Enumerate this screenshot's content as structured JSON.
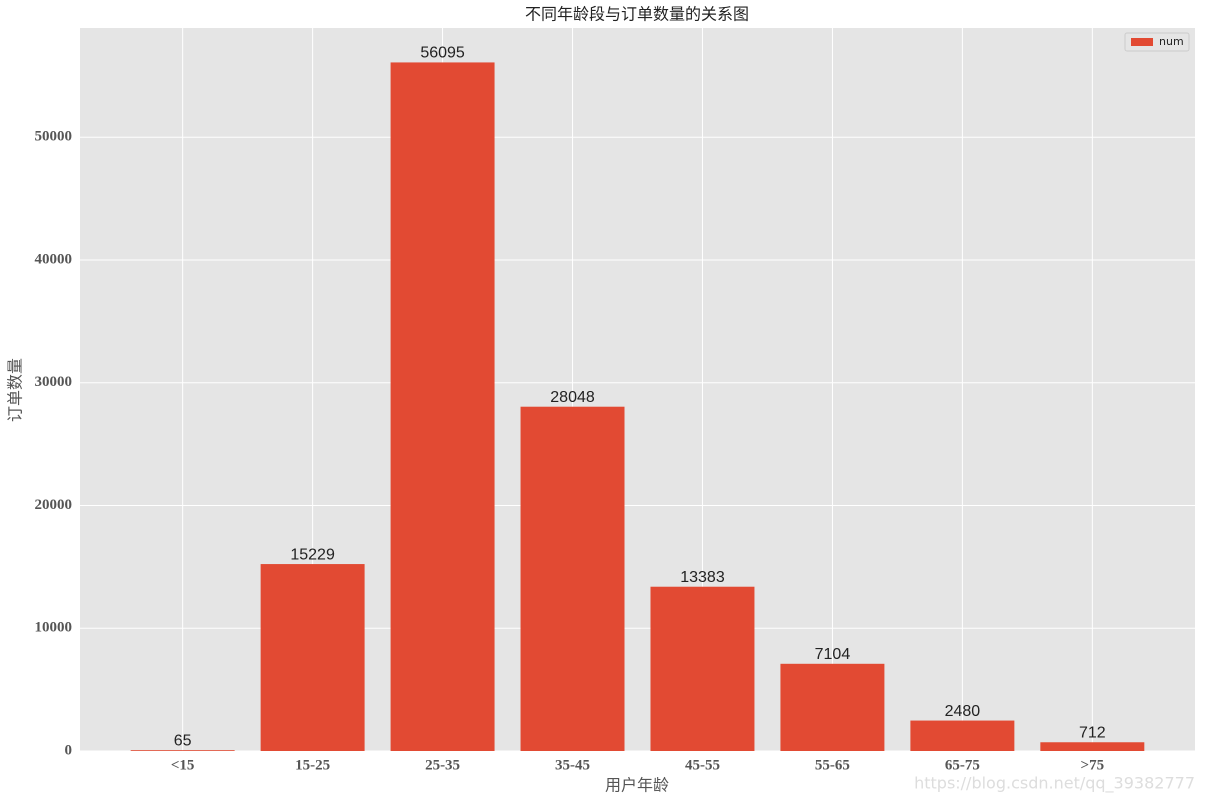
{
  "chart_data": {
    "type": "bar",
    "title": "不同年龄段与订单数量的关系图",
    "x_label": "用户年龄",
    "y_label": "订单数量",
    "categories": [
      "<15",
      "15-25",
      "25-35",
      "35-45",
      "45-55",
      "55-65",
      "65-75",
      ">75"
    ],
    "series": [
      {
        "name": "num",
        "color": "#E24A33",
        "values": [
          65,
          15229,
          56095,
          28048,
          13383,
          7104,
          2480,
          712
        ]
      }
    ],
    "ylim": [
      0,
      58900
    ],
    "yticks": [
      0,
      10000,
      20000,
      30000,
      40000,
      50000
    ],
    "grid": true,
    "legend": "upper right"
  },
  "watermark": "https://blog.csdn.net/qq_39382777"
}
